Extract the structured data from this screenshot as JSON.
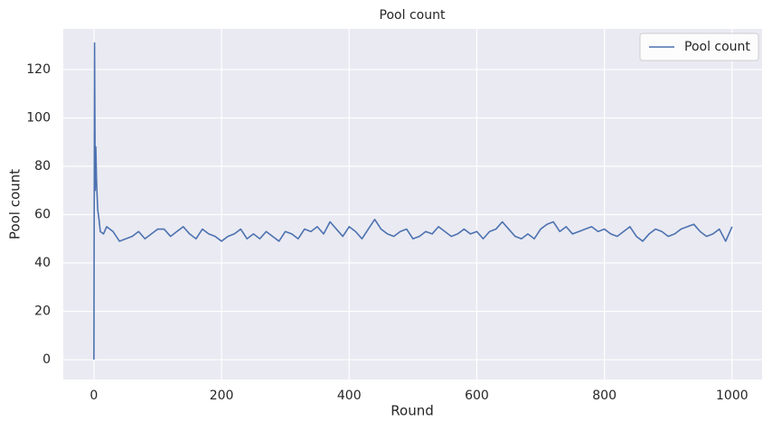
{
  "chart_data": {
    "type": "line",
    "title": "Pool count",
    "x_label": "Round",
    "y_label": "Pool count",
    "x": [
      0,
      1,
      2,
      3,
      4,
      5,
      6,
      8,
      10,
      15,
      20,
      30,
      40,
      50,
      60,
      70,
      80,
      90,
      100,
      110,
      120,
      130,
      140,
      150,
      160,
      170,
      180,
      190,
      200,
      210,
      220,
      230,
      240,
      250,
      260,
      270,
      280,
      290,
      300,
      310,
      320,
      330,
      340,
      350,
      360,
      370,
      380,
      390,
      400,
      410,
      420,
      430,
      440,
      450,
      460,
      470,
      480,
      490,
      500,
      510,
      520,
      530,
      540,
      550,
      560,
      570,
      580,
      590,
      600,
      610,
      620,
      630,
      640,
      650,
      660,
      670,
      680,
      690,
      700,
      710,
      720,
      730,
      740,
      750,
      760,
      770,
      780,
      790,
      800,
      810,
      820,
      830,
      840,
      850,
      860,
      870,
      880,
      890,
      900,
      910,
      920,
      930,
      940,
      950,
      960,
      970,
      980,
      990,
      1000
    ],
    "series": [
      {
        "name": "Pool count",
        "color": "#4c72b0",
        "values": [
          0,
          131,
          70,
          88,
          75,
          68,
          62,
          58,
          53,
          52,
          55,
          53,
          49,
          50,
          51,
          53,
          50,
          52,
          54,
          54,
          51,
          53,
          55,
          52,
          50,
          54,
          52,
          51,
          49,
          51,
          52,
          54,
          50,
          52,
          50,
          53,
          51,
          49,
          53,
          52,
          50,
          54,
          53,
          55,
          52,
          57,
          54,
          51,
          55,
          53,
          50,
          54,
          58,
          54,
          52,
          51,
          53,
          54,
          50,
          51,
          53,
          52,
          55,
          53,
          51,
          52,
          54,
          52,
          53,
          50,
          53,
          54,
          57,
          54,
          51,
          50,
          52,
          50,
          54,
          56,
          57,
          53,
          55,
          52,
          53,
          54,
          55,
          53,
          54,
          52,
          51,
          53,
          55,
          51,
          49,
          52,
          54,
          53,
          51,
          52,
          54,
          55,
          56,
          53,
          51,
          52,
          54,
          49,
          55
        ]
      }
    ],
    "xlim": [
      -48,
      1047
    ],
    "ylim": [
      -8.2,
      136.8
    ],
    "xticks": [
      0,
      200,
      400,
      600,
      800,
      1000
    ],
    "yticks": [
      0,
      20,
      40,
      60,
      80,
      100,
      120
    ],
    "grid": true,
    "legend": "upper right"
  }
}
